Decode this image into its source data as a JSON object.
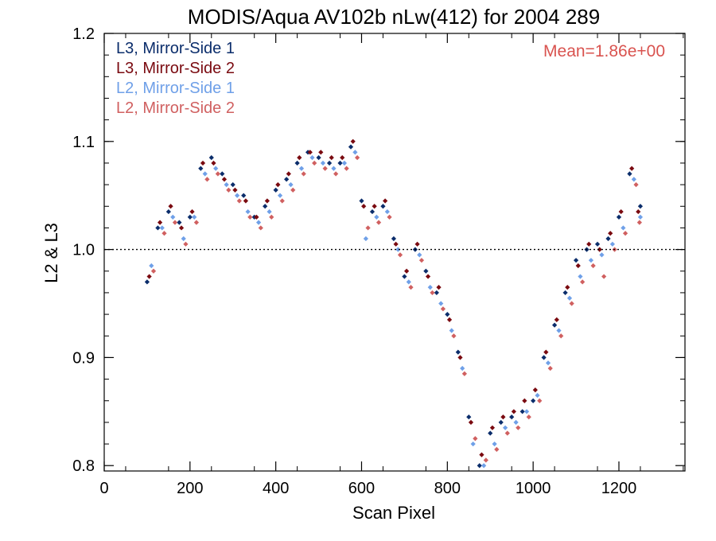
{
  "chart_data": {
    "type": "scatter",
    "title": "MODIS/Aqua AV102b nLw(412) for 2004 289",
    "xlabel": "Scan Pixel",
    "ylabel": "L2 & L3",
    "xlim": [
      0,
      1354
    ],
    "ylim": [
      0.795,
      1.2
    ],
    "xticks": [
      0,
      200,
      400,
      600,
      800,
      1000,
      1200
    ],
    "xtick_labels": [
      "0",
      "200",
      "400",
      "600",
      "800",
      "1000",
      "1200"
    ],
    "yticks": [
      0.8,
      0.9,
      1.0,
      1.1,
      1.2
    ],
    "ytick_labels": [
      "0.8",
      "0.9",
      "1.0",
      "1.1",
      "1.2"
    ],
    "reference_line": 1.0,
    "annotation": {
      "text": "Mean=1.86e+00",
      "color": "#d9534f"
    },
    "legend_position": "top-left",
    "grid": false,
    "series": [
      {
        "name": "L3, Mirror-Side 1",
        "color": "#0b2d6b",
        "x": [
          100,
          125,
          150,
          175,
          200,
          225,
          250,
          275,
          300,
          325,
          350,
          375,
          400,
          425,
          450,
          475,
          500,
          525,
          550,
          575,
          600,
          625,
          650,
          675,
          700,
          725,
          750,
          775,
          800,
          825,
          850,
          875,
          900,
          925,
          950,
          975,
          1000,
          1025,
          1050,
          1075,
          1100,
          1125,
          1150,
          1175,
          1200,
          1225,
          1250
        ],
        "y": [
          0.97,
          1.02,
          1.035,
          1.025,
          1.03,
          1.075,
          1.085,
          1.07,
          1.06,
          1.05,
          1.03,
          1.04,
          1.055,
          1.065,
          1.08,
          1.09,
          1.085,
          1.08,
          1.08,
          1.095,
          1.045,
          1.035,
          1.04,
          1.01,
          0.975,
          1.0,
          0.98,
          0.96,
          0.94,
          0.905,
          0.845,
          0.8,
          0.83,
          0.84,
          0.845,
          0.85,
          0.86,
          0.9,
          0.93,
          0.96,
          0.99,
          1.0,
          1.005,
          1.01,
          1.03,
          1.07,
          1.04
        ]
      },
      {
        "name": "L3, Mirror-Side 2",
        "color": "#7a0a10",
        "x": [
          105,
          130,
          155,
          180,
          205,
          230,
          255,
          280,
          305,
          330,
          355,
          380,
          405,
          430,
          455,
          480,
          505,
          530,
          555,
          580,
          605,
          630,
          655,
          680,
          705,
          730,
          755,
          780,
          805,
          830,
          855,
          880,
          905,
          930,
          955,
          980,
          1005,
          1030,
          1055,
          1080,
          1105,
          1130,
          1155,
          1180,
          1205,
          1230,
          1245
        ],
        "y": [
          0.975,
          1.025,
          1.04,
          1.02,
          1.035,
          1.08,
          1.08,
          1.065,
          1.055,
          1.045,
          1.03,
          1.045,
          1.06,
          1.07,
          1.085,
          1.09,
          1.09,
          1.085,
          1.085,
          1.1,
          1.04,
          1.04,
          1.045,
          1.005,
          0.98,
          1.005,
          0.975,
          0.965,
          0.935,
          0.9,
          0.84,
          0.81,
          0.835,
          0.845,
          0.85,
          0.86,
          0.87,
          0.905,
          0.935,
          0.965,
          0.985,
          1.005,
          1.0,
          1.015,
          1.035,
          1.075,
          1.035
        ]
      },
      {
        "name": "L2, Mirror-Side 1",
        "color": "#6fa0e8",
        "x": [
          110,
          135,
          160,
          185,
          210,
          235,
          260,
          285,
          310,
          335,
          360,
          385,
          410,
          435,
          460,
          485,
          510,
          535,
          560,
          585,
          610,
          635,
          660,
          685,
          710,
          735,
          760,
          785,
          810,
          835,
          860,
          885,
          910,
          935,
          960,
          985,
          1010,
          1035,
          1060,
          1085,
          1110,
          1135,
          1160,
          1185,
          1210,
          1235,
          1250
        ],
        "y": [
          0.985,
          1.02,
          1.03,
          1.01,
          1.03,
          1.07,
          1.075,
          1.06,
          1.05,
          1.035,
          1.025,
          1.035,
          1.05,
          1.06,
          1.075,
          1.085,
          1.08,
          1.075,
          1.08,
          1.09,
          1.01,
          1.03,
          1.035,
          1.0,
          0.97,
          0.995,
          0.965,
          0.95,
          0.925,
          0.89,
          0.82,
          0.8,
          0.82,
          0.835,
          0.84,
          0.85,
          0.865,
          0.895,
          0.925,
          0.955,
          0.975,
          0.99,
          0.995,
          1.005,
          1.02,
          1.065,
          1.03
        ]
      },
      {
        "name": "L2, Mirror-Side 2",
        "color": "#d06060",
        "x": [
          115,
          140,
          165,
          190,
          215,
          240,
          265,
          290,
          315,
          340,
          365,
          390,
          415,
          440,
          465,
          490,
          515,
          540,
          565,
          590,
          615,
          640,
          665,
          690,
          715,
          740,
          765,
          790,
          815,
          840,
          865,
          890,
          915,
          940,
          965,
          990,
          1015,
          1040,
          1065,
          1090,
          1115,
          1140,
          1165,
          1190,
          1215,
          1240,
          1248
        ],
        "y": [
          0.98,
          1.015,
          1.025,
          1.005,
          1.025,
          1.065,
          1.07,
          1.055,
          1.045,
          1.03,
          1.02,
          1.03,
          1.045,
          1.055,
          1.07,
          1.08,
          1.075,
          1.07,
          1.075,
          1.085,
          1.02,
          1.025,
          1.03,
          0.995,
          0.965,
          0.99,
          0.96,
          0.945,
          0.92,
          0.885,
          0.825,
          0.805,
          0.815,
          0.83,
          0.835,
          0.845,
          0.86,
          0.89,
          0.92,
          0.95,
          0.97,
          0.985,
          0.975,
          1.0,
          1.015,
          1.06,
          1.025
        ]
      }
    ]
  }
}
